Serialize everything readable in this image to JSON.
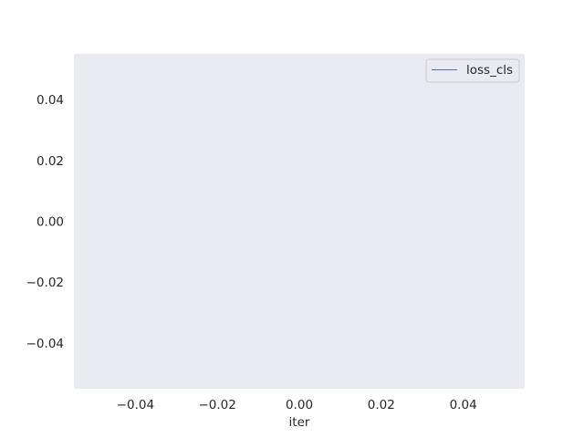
{
  "chart_data": {
    "type": "line",
    "title": "",
    "xlabel": "iter",
    "ylabel": "",
    "xlim": [
      -0.055,
      0.055
    ],
    "ylim": [
      -0.055,
      0.055
    ],
    "x_ticks": [
      -0.04,
      -0.02,
      0.0,
      0.02,
      0.04
    ],
    "x_tick_labels": [
      "−0.04",
      "−0.02",
      "0.00",
      "0.02",
      "0.04"
    ],
    "y_ticks": [
      -0.04,
      -0.02,
      0.0,
      0.02,
      0.04
    ],
    "y_tick_labels": [
      "−0.04",
      "−0.02",
      "0.00",
      "0.02",
      "0.04"
    ],
    "grid": false,
    "legend_position": "top-right",
    "background": "#eaeaf2",
    "series": [
      {
        "name": "loss_cls",
        "color": "#4c72b0",
        "x": [],
        "y": []
      }
    ]
  }
}
